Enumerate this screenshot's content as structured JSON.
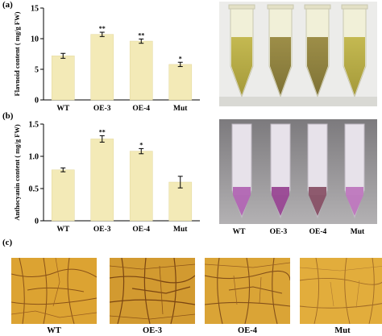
{
  "panels": {
    "a": "(a)",
    "b": "(b)",
    "c": "(c)"
  },
  "chart_data": [
    {
      "type": "bar",
      "panel": "a",
      "categories": [
        "WT",
        "OE-3",
        "OE-4",
        "Mut"
      ],
      "values": [
        7.2,
        10.7,
        9.6,
        5.8
      ],
      "errors": [
        0.4,
        0.35,
        0.35,
        0.35
      ],
      "significance": [
        "",
        "**",
        "**",
        "*"
      ],
      "ylabel": "Flavnoid content ( mg/g FW)",
      "ylim": [
        0,
        15
      ],
      "yticks": [
        0,
        5,
        10,
        15
      ],
      "bar_color": "#F3EAB7",
      "grid": false
    },
    {
      "type": "bar",
      "panel": "b",
      "categories": [
        "WT",
        "OE-3",
        "OE-4",
        "Mut"
      ],
      "values": [
        0.79,
        1.27,
        1.08,
        0.6
      ],
      "errors": [
        0.03,
        0.05,
        0.04,
        0.09
      ],
      "significance": [
        "",
        "**",
        "*",
        ""
      ],
      "ylabel": "Anthocyanin content ( mg/g FW)",
      "ylim": [
        0,
        1.5
      ],
      "yticks": [
        0,
        0.5,
        1.0,
        1.5
      ],
      "ytick_labels": [
        "0",
        "0.5",
        "1.0",
        "1.5"
      ],
      "bar_color": "#F3EAB7",
      "grid": false
    }
  ],
  "photo_labels": [
    "WT",
    "OE-3",
    "OE-4",
    "Mut"
  ],
  "leaf_labels": [
    "WT",
    "OE-3",
    "OE-4",
    "Mut"
  ],
  "colors": {
    "flavonoid_solution": "#B9AE47",
    "anthocyanin_solution": "#A2559F",
    "leaf_tissue": "#D99E2E"
  }
}
